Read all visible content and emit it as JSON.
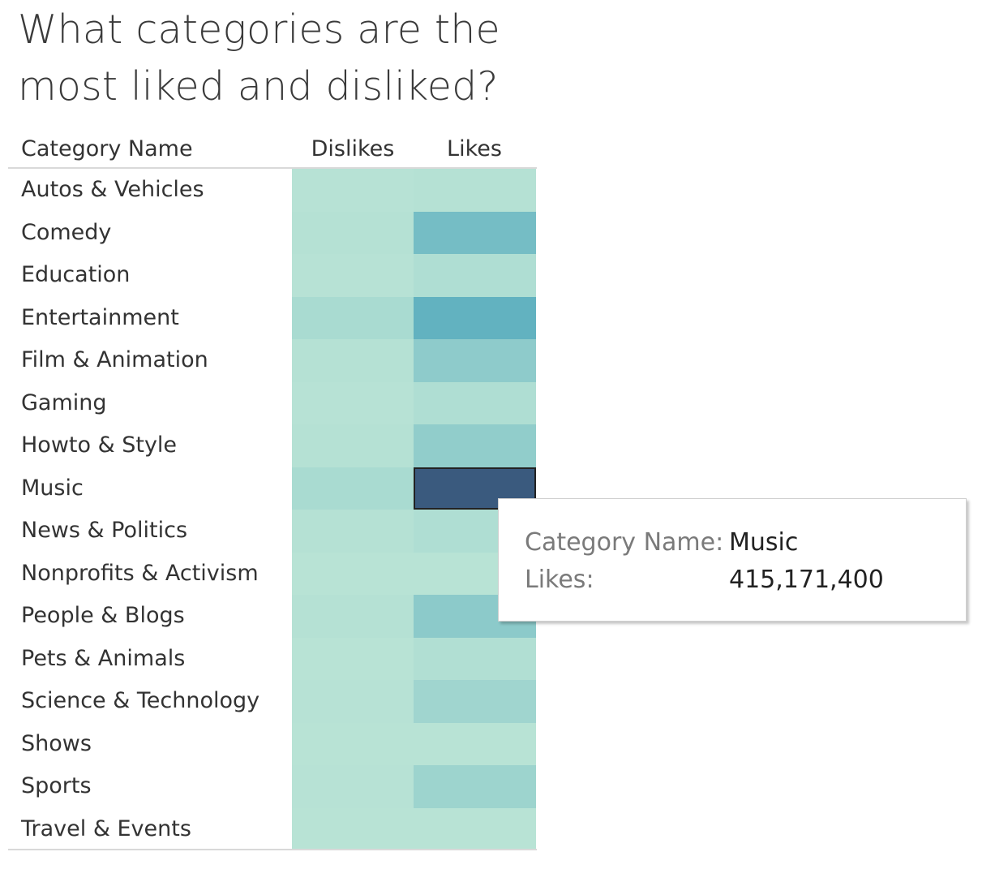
{
  "chart_data": {
    "type": "heatmap",
    "title": "What categories are the most liked and disliked?",
    "row_header": "Category Name",
    "columns": [
      "Dislikes",
      "Likes"
    ],
    "rows": [
      {
        "category": "Autos & Vehicles",
        "dislikes": 0.01,
        "likes": 0.02
      },
      {
        "category": "Comedy",
        "dislikes": 0.02,
        "likes": 0.45
      },
      {
        "category": "Education",
        "dislikes": 0.01,
        "likes": 0.06
      },
      {
        "category": "Entertainment",
        "dislikes": 0.1,
        "likes": 0.58
      },
      {
        "category": "Film & Animation",
        "dislikes": 0.02,
        "likes": 0.28
      },
      {
        "category": "Gaming",
        "dislikes": 0.01,
        "likes": 0.06
      },
      {
        "category": "Howto & Style",
        "dislikes": 0.02,
        "likes": 0.26
      },
      {
        "category": "Music",
        "dislikes": 0.1,
        "likes": 1.0
      },
      {
        "category": "News & Politics",
        "dislikes": 0.02,
        "likes": 0.06
      },
      {
        "category": "Nonprofits & Activism",
        "dislikes": 0.0,
        "likes": 0.0
      },
      {
        "category": "People & Blogs",
        "dislikes": 0.02,
        "likes": 0.3
      },
      {
        "category": "Pets & Animals",
        "dislikes": 0.0,
        "likes": 0.05
      },
      {
        "category": "Science & Technology",
        "dislikes": 0.01,
        "likes": 0.16
      },
      {
        "category": "Shows",
        "dislikes": 0.0,
        "likes": 0.0
      },
      {
        "category": "Sports",
        "dislikes": 0.01,
        "likes": 0.18
      },
      {
        "category": "Travel & Events",
        "dislikes": 0.0,
        "likes": 0.0
      }
    ],
    "selected": {
      "category": "Music",
      "column": "Likes"
    },
    "color_scale": {
      "low": "#b8e3d5",
      "mid": "#5fb0bf",
      "high": "#3a5a7e"
    },
    "tooltip": {
      "label_category": "Category Name:",
      "value_category": "Music",
      "label_likes": "Likes:",
      "value_likes": "415,171,400"
    }
  }
}
